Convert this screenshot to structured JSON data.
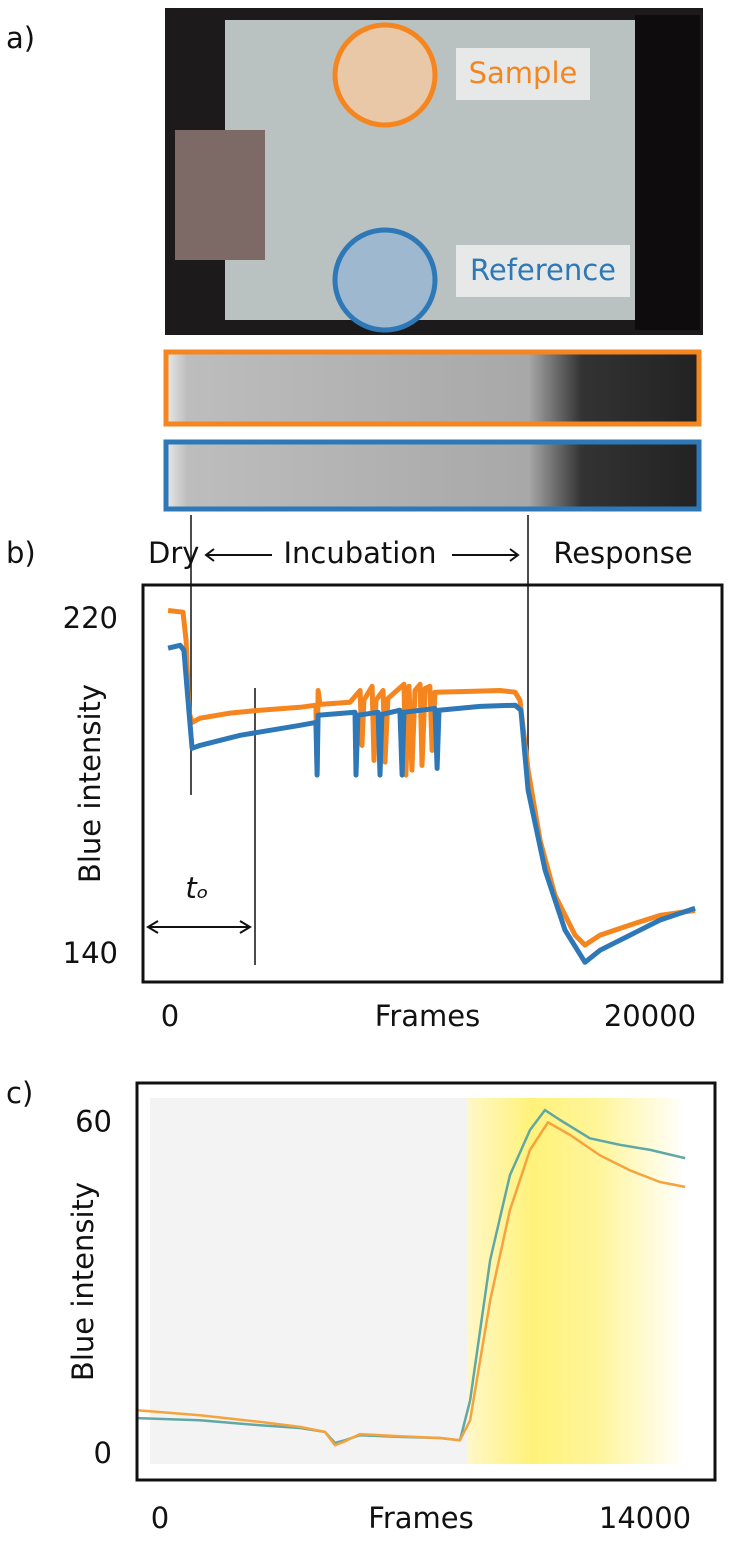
{
  "photo": {
    "panel_label": "a)",
    "sample_label": "Sample",
    "reference_label": "Reference",
    "sample_color": "#f5861f",
    "reference_color": "#2e78b7"
  },
  "chart_data": [
    {
      "type": "line",
      "panel_label": "b)",
      "x_label": "Frames",
      "y_label": "Blue intensity",
      "annotations": [
        "Dry",
        "Incubation",
        "Response",
        "tₒ"
      ],
      "xlim": [
        -1125,
        23000
      ],
      "ylim": [
        133.6,
        228.4
      ],
      "xticks": [
        0,
        20000
      ],
      "yticks": [
        140,
        220
      ],
      "series": [
        {
          "color": "#f5861f",
          "x": [
            -80,
            540,
            670,
            790,
            920,
            1250,
            2500,
            3750,
            5420,
            6080,
            6130,
            6170,
            6250,
            7500,
            7920,
            8000,
            8080,
            8420,
            8500,
            8580,
            8880,
            8960,
            9080,
            9750,
            9830,
            9960,
            10080,
            10210,
            10420,
            10500,
            10630,
            10830,
            10920,
            11040,
            12500,
            13750,
            14380,
            14580,
            14920,
            15420,
            16040,
            16880,
            17290,
            17920,
            19170,
            20420,
            21880
          ],
          "values": [
            222.3,
            221.9,
            215.2,
            198.0,
            195.6,
            196.6,
            197.8,
            198.5,
            199.2,
            199.7,
            184.2,
            203.2,
            199.9,
            200.4,
            203.2,
            190.1,
            200.9,
            204.2,
            186.5,
            200.9,
            203.2,
            186.1,
            201.3,
            204.7,
            183.0,
            204.2,
            184.2,
            203.2,
            204.7,
            185.3,
            203.7,
            204.2,
            188.9,
            202.8,
            203.0,
            203.2,
            202.8,
            200.9,
            184.2,
            167.4,
            154.3,
            144.8,
            142.4,
            144.8,
            147.2,
            149.5,
            150.7
          ]
        },
        {
          "color": "#2e78b7",
          "x": [
            -80,
            420,
            580,
            750,
            920,
            1250,
            2920,
            5420,
            6080,
            6130,
            6170,
            7710,
            7750,
            7830,
            8670,
            8750,
            8830,
            9580,
            9670,
            9750,
            11040,
            11130,
            11210,
            12920,
            14380,
            14620,
            14920,
            15630,
            16460,
            17290,
            17920,
            19170,
            20420,
            21880
          ],
          "values": [
            213.3,
            214.0,
            212.8,
            200.9,
            189.4,
            190.1,
            192.5,
            194.9,
            195.6,
            183.0,
            197.3,
            198.0,
            183.0,
            197.3,
            198.0,
            183.0,
            197.5,
            198.5,
            183.0,
            198.0,
            198.9,
            184.6,
            198.5,
            199.4,
            199.7,
            198.5,
            179.4,
            160.3,
            146.0,
            138.3,
            141.2,
            144.8,
            148.4,
            151.2
          ]
        }
      ]
    },
    {
      "type": "line",
      "panel_label": "c)",
      "x_label": "Frames",
      "y_label": "Blue intensity",
      "xlim": [
        -664,
        16020
      ],
      "ylim": [
        -4.5,
        67.3
      ],
      "xticks": [
        0,
        14000
      ],
      "yticks": [
        0,
        60
      ],
      "series": [
        {
          "color": "#5fa8a5",
          "x": [
            -660,
            1150,
            2890,
            4040,
            4760,
            5050,
            5340,
            5770,
            6930,
            8080,
            8660,
            8950,
            9530,
            10100,
            10680,
            11110,
            11550,
            12410,
            13280,
            14150,
            15160
          ],
          "values": [
            6.7,
            6.3,
            5.4,
            4.9,
            4.2,
            2.2,
            2.7,
            3.6,
            3.3,
            3.1,
            2.7,
            9.9,
            35.3,
            50.6,
            58.8,
            62.4,
            60.6,
            57.3,
            56.1,
            55.2,
            53.7
          ]
        },
        {
          "color": "#f6a33e",
          "x": [
            -660,
            1150,
            2890,
            4040,
            4760,
            5050,
            5340,
            5770,
            6930,
            8080,
            8660,
            8950,
            9530,
            10100,
            10680,
            11200,
            11840,
            12700,
            13570,
            14430,
            15160
          ],
          "values": [
            8.1,
            7.2,
            6.0,
            5.1,
            4.2,
            1.8,
            2.5,
            3.8,
            3.4,
            3.1,
            2.7,
            6.3,
            28.0,
            44.3,
            55.2,
            60.2,
            57.9,
            54.2,
            51.5,
            49.4,
            48.5
          ]
        }
      ]
    }
  ]
}
